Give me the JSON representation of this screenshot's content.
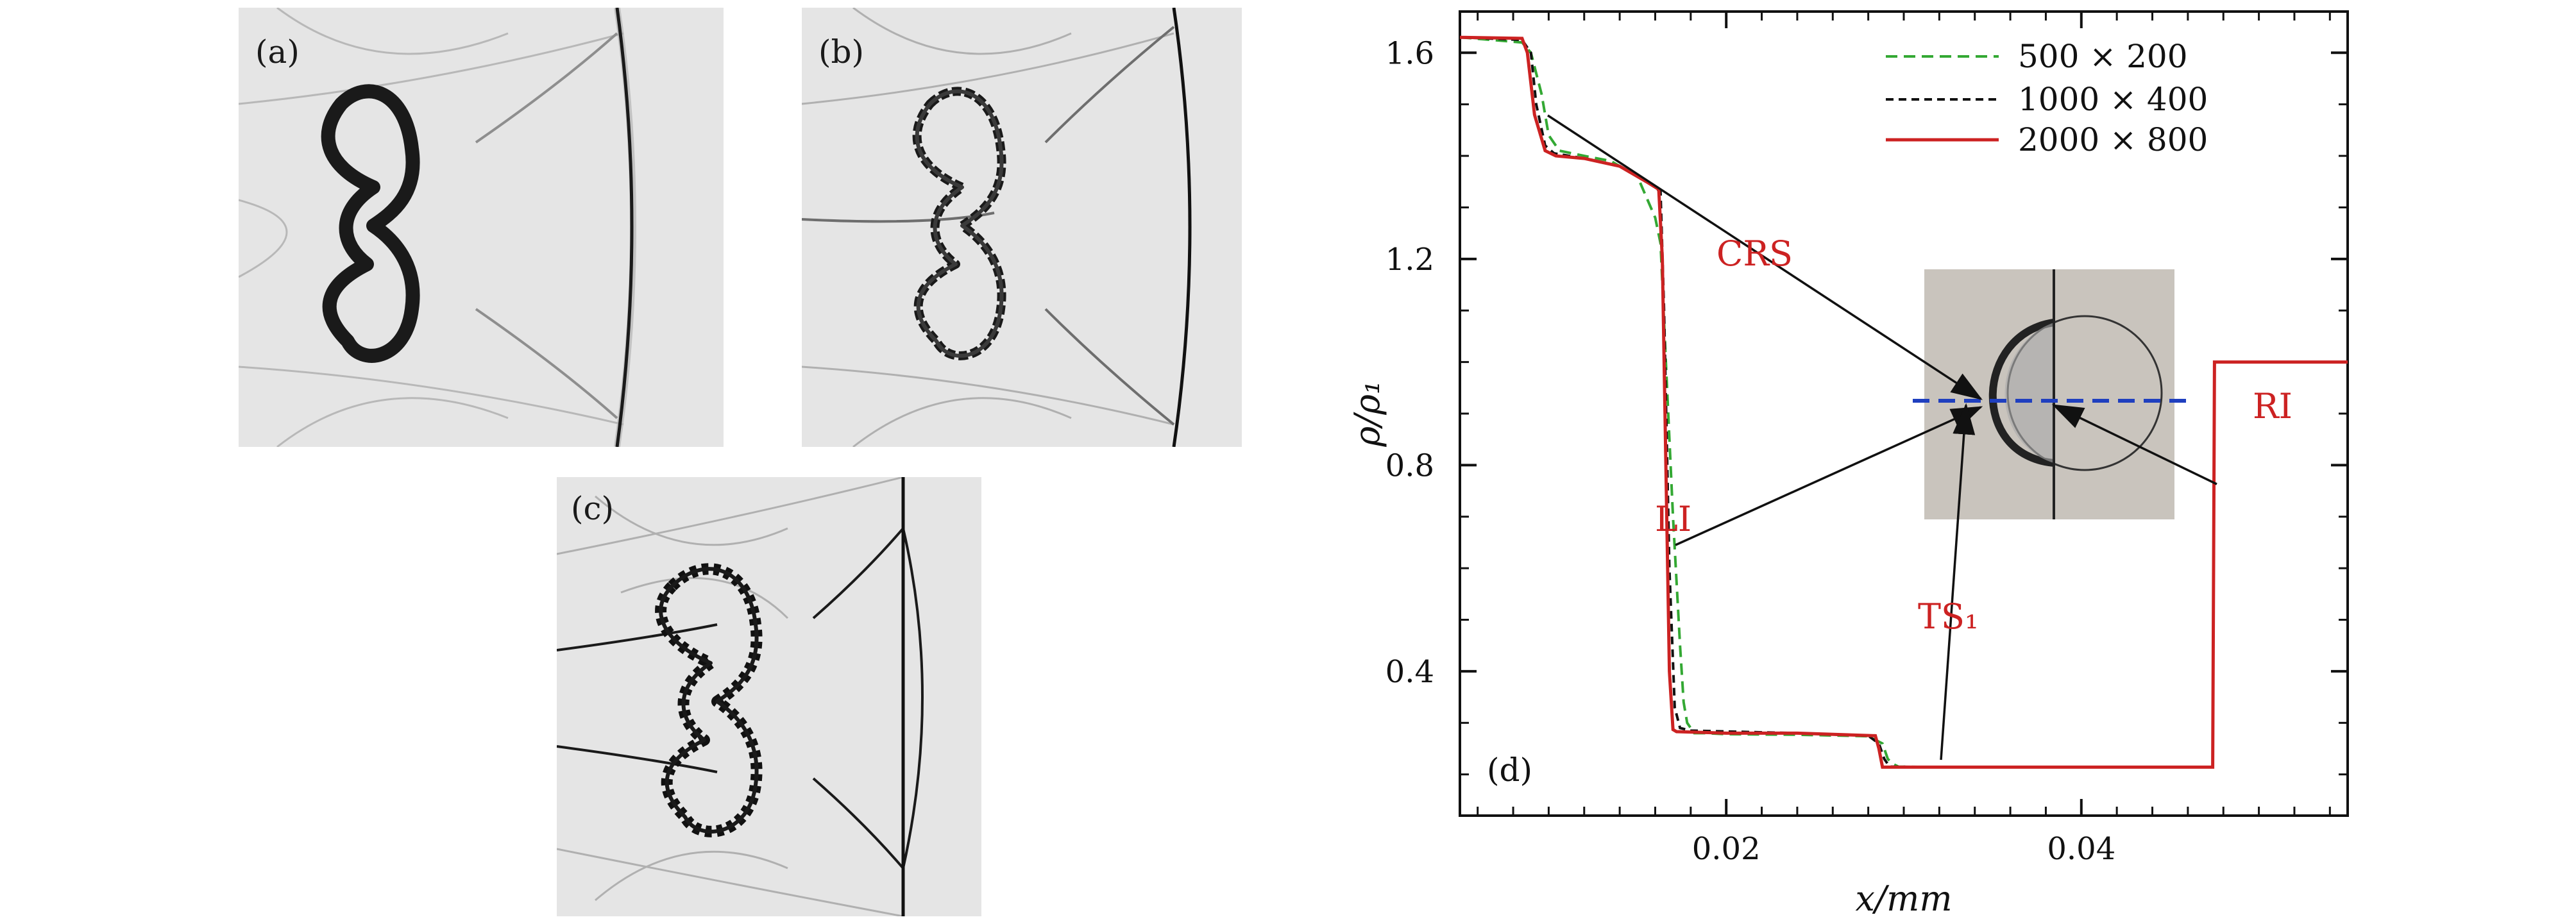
{
  "panels": [
    {
      "label": "(a)"
    },
    {
      "label": "(b)"
    },
    {
      "label": "(c)"
    }
  ],
  "chart_data": {
    "type": "line",
    "panel_label": "(d)",
    "xlabel": "x/mm",
    "ylabel": "ρ/ρ₁",
    "xlim": [
      0.005,
      0.055
    ],
    "ylim": [
      0.12,
      1.68
    ],
    "x_ticks": [
      0.02,
      0.04
    ],
    "x_tick_labels": [
      "0.02",
      "0.04"
    ],
    "y_ticks": [
      0.4,
      0.8,
      1.2,
      1.6
    ],
    "y_tick_labels": [
      "0.4",
      "0.8",
      "1.2",
      "1.6"
    ],
    "series": [
      {
        "name": "500 × 200",
        "color": "#33a833",
        "dash": "dashed",
        "x": [
          0.005,
          0.0085,
          0.009,
          0.0096,
          0.01,
          0.0106,
          0.012,
          0.0135,
          0.015,
          0.016,
          0.0163,
          0.0166,
          0.017,
          0.0174,
          0.0176,
          0.0178,
          0.018,
          0.0182,
          0.0188,
          0.02,
          0.024,
          0.028,
          0.0288,
          0.0291,
          0.0294,
          0.0297,
          0.032,
          0.04,
          0.0474,
          0.0475,
          0.055
        ],
        "y": [
          1.63,
          1.62,
          1.6,
          1.52,
          1.44,
          1.41,
          1.4,
          1.39,
          1.36,
          1.28,
          1.23,
          1.0,
          0.7,
          0.45,
          0.34,
          0.3,
          0.29,
          0.28,
          0.28,
          0.278,
          0.277,
          0.274,
          0.26,
          0.23,
          0.22,
          0.215,
          0.214,
          0.214,
          0.214,
          1.0,
          1.0
        ]
      },
      {
        "name": "1000 × 400",
        "color": "#111111",
        "dash": "dashed",
        "x": [
          0.005,
          0.0085,
          0.009,
          0.0093,
          0.0098,
          0.0103,
          0.012,
          0.014,
          0.0156,
          0.0163,
          0.0165,
          0.0168,
          0.0171,
          0.0174,
          0.018,
          0.024,
          0.028,
          0.0286,
          0.0289,
          0.0292,
          0.032,
          0.04,
          0.0474,
          0.0475,
          0.055
        ],
        "y": [
          1.63,
          1.625,
          1.6,
          1.5,
          1.42,
          1.405,
          1.395,
          1.38,
          1.35,
          1.33,
          1.1,
          0.6,
          0.33,
          0.29,
          0.285,
          0.28,
          0.275,
          0.26,
          0.23,
          0.215,
          0.214,
          0.214,
          0.214,
          1.0,
          1.0
        ]
      },
      {
        "name": "2000 × 800",
        "color": "#cc2222",
        "dash": "solid",
        "x": [
          0.005,
          0.0085,
          0.0088,
          0.0092,
          0.0098,
          0.0104,
          0.012,
          0.014,
          0.0155,
          0.0162,
          0.0164,
          0.0166,
          0.0168,
          0.017,
          0.0172,
          0.02,
          0.024,
          0.0284,
          0.0286,
          0.0288,
          0.032,
          0.04,
          0.0474,
          0.0475,
          0.055
        ],
        "y": [
          1.63,
          1.628,
          1.6,
          1.48,
          1.41,
          1.4,
          1.395,
          1.38,
          1.35,
          1.335,
          1.2,
          0.8,
          0.4,
          0.287,
          0.283,
          0.28,
          0.28,
          0.275,
          0.25,
          0.214,
          0.214,
          0.214,
          0.214,
          1.0,
          1.0
        ]
      }
    ],
    "annotations": [
      {
        "text": "CRS",
        "color": "#cc2222"
      },
      {
        "text": "LI",
        "color": "#cc2222"
      },
      {
        "text": "TS₁",
        "color": "#cc2222"
      },
      {
        "text": "RI",
        "color": "#cc2222"
      }
    ],
    "inset": {
      "background": "#c9c4bd",
      "cut_line_color": "#1f3fbf"
    }
  }
}
